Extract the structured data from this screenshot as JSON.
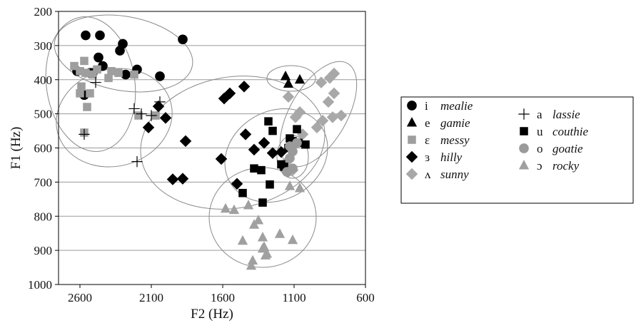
{
  "chart_data": {
    "type": "scatter",
    "title": "",
    "xlabel": "F2 (Hz)",
    "ylabel": "F1 (Hz)",
    "x_reversed": true,
    "y_reversed": true,
    "xlim": [
      2750,
      600
    ],
    "ylim": [
      200,
      1000
    ],
    "x_ticks": [
      "2600",
      "2100",
      "1600",
      "1100",
      "600"
    ],
    "y_ticks": [
      "200",
      "300",
      "400",
      "500",
      "600",
      "700",
      "800",
      "900",
      "1000"
    ],
    "grid": "horizontal",
    "legend_position": "right",
    "series": [
      {
        "name": "mealie",
        "symbol": "i",
        "marker": "circle",
        "color": "#000000",
        "x": [
          2560,
          2460,
          2530,
          2470,
          2440,
          2320,
          2300,
          2280,
          2200,
          2620,
          2510,
          2570,
          2040,
          1880
        ],
        "y": [
          270,
          270,
          380,
          335,
          360,
          315,
          295,
          385,
          370,
          375,
          380,
          445,
          390,
          282
        ]
      },
      {
        "name": "gamie",
        "symbol": "e",
        "marker": "triangle",
        "color": "#000000",
        "x": [
          1160,
          1140,
          1060
        ],
        "y": [
          390,
          412,
          400
        ]
      },
      {
        "name": "messy",
        "symbol": "ɛ",
        "marker": "square",
        "color": "#9e9e9e",
        "x": [
          2640,
          2600,
          2570,
          2560,
          2530,
          2480,
          2400,
          2380,
          2330,
          2220,
          2590,
          2600,
          2550,
          2510,
          2570,
          2190,
          2070
        ],
        "y": [
          360,
          375,
          345,
          380,
          440,
          370,
          395,
          375,
          380,
          385,
          420,
          440,
          480,
          385,
          555,
          505,
          505
        ]
      },
      {
        "name": "hilly",
        "symbol": "ɜ",
        "marker": "diamond",
        "color": "#000000",
        "x": [
          1590,
          1550,
          1450,
          2050,
          2000,
          2120,
          1860,
          1950,
          1880,
          1610,
          1500,
          1440,
          1380,
          1310,
          1250,
          1190,
          1170
        ],
        "y": [
          455,
          440,
          420,
          478,
          512,
          540,
          580,
          692,
          690,
          632,
          705,
          560,
          605,
          585,
          615,
          612,
          652
        ]
      },
      {
        "name": "sunny",
        "symbol": "ʌ",
        "marker": "diamond",
        "color": "#a8a8a8",
        "x": [
          850,
          820,
          910,
          820,
          770,
          860,
          830,
          900,
          940,
          1060,
          1090,
          1040,
          1110,
          1150,
          1110,
          1140,
          1140
        ],
        "y": [
          395,
          382,
          408,
          440,
          505,
          465,
          510,
          520,
          540,
          495,
          510,
          560,
          590,
          640,
          665,
          670,
          450
        ]
      },
      {
        "name": "lassie",
        "symbol": "a",
        "marker": "plus",
        "color": "#000000",
        "x": [
          2490,
          2220,
          2170,
          2040,
          2100,
          2570,
          2200
        ],
        "y": [
          408,
          485,
          500,
          465,
          505,
          560,
          640
        ]
      },
      {
        "name": "couthie",
        "symbol": "u",
        "marker": "square",
        "color": "#000000",
        "x": [
          1280,
          1250,
          1380,
          1330,
          1460,
          1320,
          1270,
          1190,
          1170,
          1130,
          1080,
          1020,
          1140,
          1110,
          1070
        ],
        "y": [
          522,
          550,
          660,
          665,
          732,
          760,
          707,
          648,
          655,
          572,
          545,
          590,
          600,
          580,
          585
        ]
      },
      {
        "name": "goatie",
        "symbol": "o",
        "marker": "circle",
        "color": "#9a9a9a",
        "x": [
          1130,
          1110,
          1130,
          1110,
          1080,
          1150
        ],
        "y": [
          595,
          610,
          630,
          660,
          585,
          670
        ]
      },
      {
        "name": "rocky",
        "symbol": "ɔ",
        "marker": "triangle",
        "color": "#a0a0a0",
        "x": [
          1390,
          1290,
          1320,
          1110,
          1580,
          1520,
          1420,
          1380,
          1350,
          1460,
          1320,
          1310,
          1300,
          1400,
          1200,
          1130,
          1060
        ],
        "y": [
          930,
          910,
          895,
          870,
          778,
          782,
          768,
          825,
          812,
          872,
          862,
          890,
          915,
          945,
          852,
          712,
          718
        ]
      }
    ]
  }
}
